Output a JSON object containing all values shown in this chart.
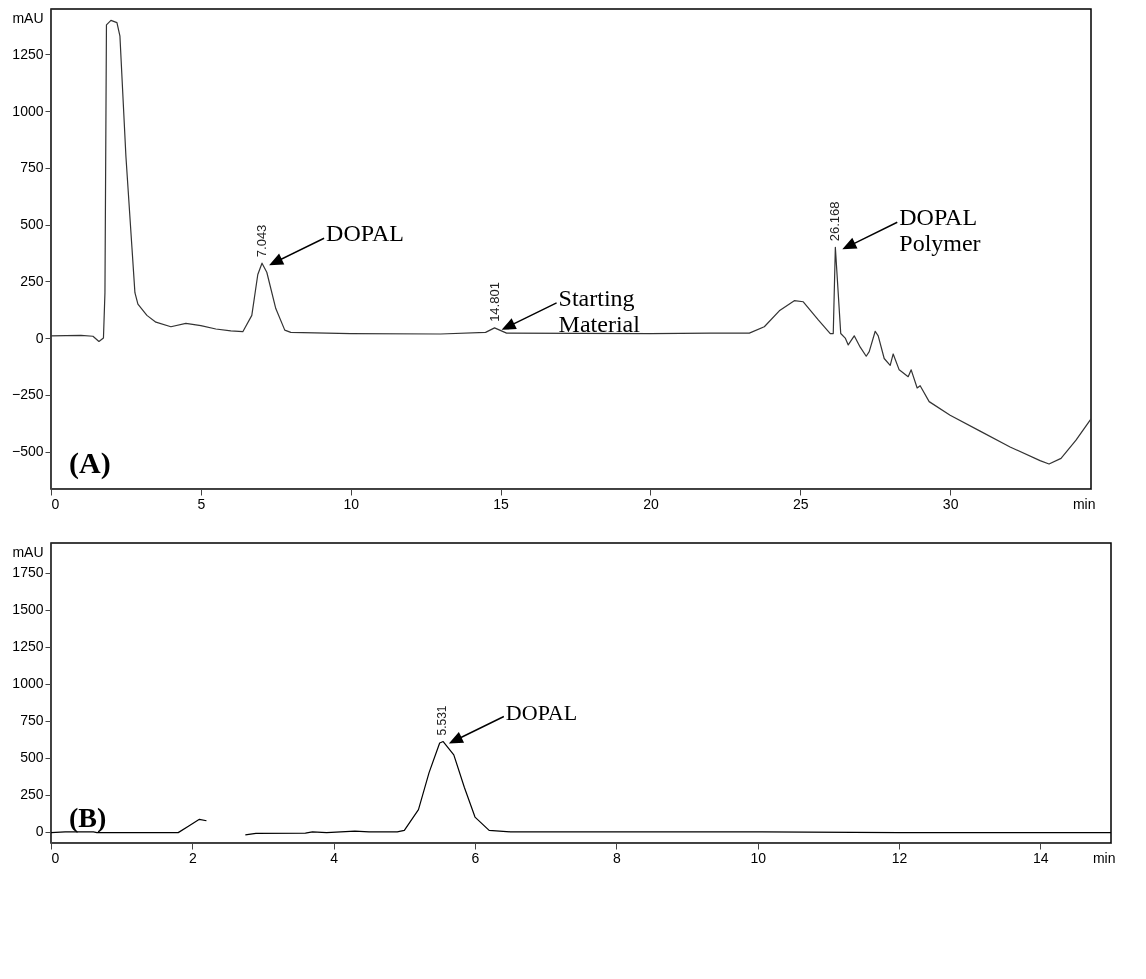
{
  "chart_data": [
    {
      "type": "line",
      "xlabel": "min",
      "ylabel": "mAU",
      "xlim": [
        0,
        34.7
      ],
      "ylim": [
        -665,
        1450
      ],
      "xticks": [
        0,
        5,
        10,
        15,
        20,
        25,
        30
      ],
      "yticks": [
        -500,
        -250,
        0,
        250,
        500,
        750,
        1000,
        1250
      ],
      "x": [
        0,
        1,
        1.4,
        1.6,
        1.75,
        1.8,
        1.85,
        2.0,
        2.2,
        2.3,
        2.5,
        2.7,
        2.8,
        2.9,
        3.2,
        3.5,
        4.0,
        4.5,
        5.0,
        5.5,
        6.0,
        6.4,
        6.7,
        6.9,
        7.04,
        7.2,
        7.5,
        7.8,
        8.0,
        10,
        13,
        14.5,
        14.8,
        15.2,
        20,
        22,
        23.3,
        23.8,
        24.3,
        24.8,
        25.1,
        25.6,
        26.0,
        26.1,
        26.17,
        26.35,
        26.5,
        26.6,
        26.8,
        27.0,
        27.2,
        27.3,
        27.5,
        27.6,
        27.8,
        28.0,
        28.1,
        28.3,
        28.6,
        28.7,
        28.9,
        29.0,
        29.3,
        30,
        31,
        32,
        33,
        33.3,
        33.7,
        34.2,
        34.7
      ],
      "series": [
        {
          "color": "#333333",
          "values": [
            10,
            12,
            8,
            -15,
            0,
            200,
            1380,
            1400,
            1390,
            1330,
            800,
            400,
            200,
            150,
            100,
            70,
            50,
            65,
            55,
            40,
            32,
            28,
            100,
            280,
            330,
            290,
            130,
            35,
            25,
            20,
            18,
            25,
            45,
            22,
            20,
            22,
            22,
            50,
            120,
            165,
            160,
            80,
            20,
            20,
            400,
            20,
            0,
            -30,
            10,
            -40,
            -80,
            -60,
            30,
            10,
            -90,
            -120,
            -70,
            -140,
            -170,
            -140,
            -220,
            -210,
            -280,
            -340,
            -410,
            -480,
            -540,
            -555,
            -530,
            -450,
            -356
          ]
        }
      ],
      "annotations": [
        {
          "text": "7.043",
          "x": 7.043,
          "y": 330
        },
        {
          "text": "14.801",
          "x": 14.801,
          "y": 45
        },
        {
          "text": "26.168",
          "x": 26.168,
          "y": 400
        },
        {
          "text": "DOPAL",
          "x": 7.043,
          "y": 330
        },
        {
          "text": "Starting Material",
          "x": 14.801,
          "y": 45
        },
        {
          "text": "DOPAL Polymer",
          "x": 26.168,
          "y": 400
        },
        "(A)"
      ]
    },
    {
      "type": "line",
      "xlabel": "min",
      "ylabel": "mAU",
      "xlim": [
        0,
        15
      ],
      "ylim": [
        -75,
        1950
      ],
      "xticks": [
        0,
        2,
        4,
        6,
        8,
        10,
        12,
        14
      ],
      "yticks": [
        0,
        250,
        500,
        750,
        1000,
        1250,
        1500,
        1750
      ],
      "x": [
        0,
        0.2,
        0.6,
        0.65,
        1.8,
        1.95,
        2.1,
        2.2,
        2.25,
        2.5,
        2.7,
        2.75,
        2.9,
        3.6,
        3.7,
        3.9,
        4.3,
        4.5,
        4.9,
        5.0,
        5.2,
        5.35,
        5.5,
        5.55,
        5.7,
        5.85,
        6.0,
        6.2,
        6.5,
        8,
        10,
        12,
        14,
        15
      ],
      "series": [
        {
          "color": "#000000",
          "values": [
            -5,
            0,
            0,
            -5,
            -5,
            40,
            85,
            75,
            null,
            null,
            null,
            -20,
            -10,
            -8,
            0,
            -5,
            5,
            0,
            0,
            10,
            150,
            400,
            600,
            610,
            520,
            300,
            100,
            10,
            0,
            0,
            0,
            -5,
            -5,
            -5
          ]
        }
      ],
      "annotations": [
        {
          "text": "5.531",
          "x": 5.531,
          "y": 610
        },
        {
          "text": "DOPAL",
          "x": 5.531,
          "y": 610
        },
        "(B)"
      ]
    }
  ]
}
